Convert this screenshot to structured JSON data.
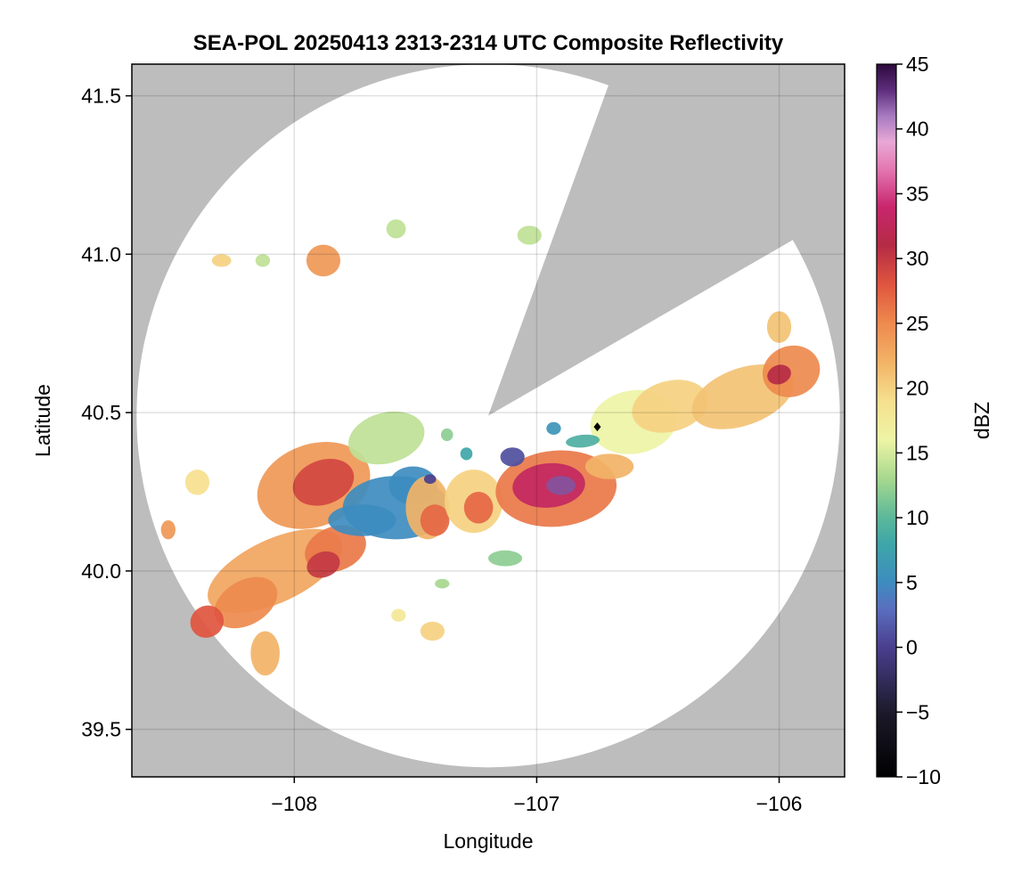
{
  "chart_data": {
    "type": "heatmap",
    "title": "SEA-POL 20250413 2313-2314 UTC Composite Reflectivity",
    "xlabel": "Longitude",
    "ylabel": "Latitude",
    "xlim": [
      -108.67,
      -105.73
    ],
    "ylim": [
      39.35,
      41.6
    ],
    "x_ticks": [
      -108,
      -107,
      -106
    ],
    "x_tick_labels": [
      "−108",
      "−107",
      "−106"
    ],
    "y_ticks": [
      39.5,
      40.0,
      40.5,
      41.0,
      41.5
    ],
    "y_tick_labels": [
      "39.5",
      "40.0",
      "40.5",
      "41.0",
      "41.5"
    ],
    "grid": true,
    "background_color": "#bdbdbd",
    "coverage_color": "#ffffff",
    "radar": {
      "center_lon": -107.2,
      "center_lat": 40.49,
      "range_deg_lat": 1.11,
      "blocked_sector_az_deg": [
        20,
        60
      ]
    },
    "station_marker": {
      "lon": -106.75,
      "lat": 40.455,
      "color": "#000000"
    },
    "colorbar": {
      "label": "dBZ",
      "min": -10,
      "max": 45,
      "ticks": [
        -10,
        -5,
        0,
        5,
        10,
        15,
        20,
        25,
        30,
        35,
        40,
        45
      ],
      "tick_labels": [
        "−10",
        "−5",
        "0",
        "5",
        "10",
        "15",
        "20",
        "25",
        "30",
        "35",
        "40",
        "45"
      ],
      "colormap_stops": [
        {
          "v": -10,
          "c": "#000000"
        },
        {
          "v": -5,
          "c": "#1c1a2a"
        },
        {
          "v": 0,
          "c": "#4a3f8e"
        },
        {
          "v": 3,
          "c": "#5a6fbf"
        },
        {
          "v": 5,
          "c": "#3d8cbf"
        },
        {
          "v": 8,
          "c": "#3ea6a8"
        },
        {
          "v": 10,
          "c": "#5cb89a"
        },
        {
          "v": 13,
          "c": "#a6d88e"
        },
        {
          "v": 16,
          "c": "#eef4a6"
        },
        {
          "v": 19,
          "c": "#f6e08e"
        },
        {
          "v": 22,
          "c": "#f2b367"
        },
        {
          "v": 25,
          "c": "#ee8a4e"
        },
        {
          "v": 28,
          "c": "#e0553f"
        },
        {
          "v": 31,
          "c": "#b52b45"
        },
        {
          "v": 34,
          "c": "#c9266e"
        },
        {
          "v": 37,
          "c": "#e47ab4"
        },
        {
          "v": 39,
          "c": "#e8a8d6"
        },
        {
          "v": 41,
          "c": "#a77ac0"
        },
        {
          "v": 43,
          "c": "#5e2d7c"
        },
        {
          "v": 45,
          "c": "#2d0a3c"
        }
      ]
    },
    "echo_regions": [
      {
        "lon": -107.92,
        "lat": 40.27,
        "rlon": 0.24,
        "rlat": 0.13,
        "rot": -20,
        "dbz": 24
      },
      {
        "lon": -107.88,
        "lat": 40.28,
        "rlon": 0.13,
        "rlat": 0.07,
        "rot": -20,
        "dbz": 29
      },
      {
        "lon": -107.62,
        "lat": 40.42,
        "rlon": 0.16,
        "rlat": 0.08,
        "rot": -15,
        "dbz": 14
      },
      {
        "lon": -108.08,
        "lat": 40.0,
        "rlon": 0.3,
        "rlat": 0.1,
        "rot": -25,
        "dbz": 23
      },
      {
        "lon": -108.2,
        "lat": 39.9,
        "rlon": 0.14,
        "rlat": 0.07,
        "rot": -30,
        "dbz": 25
      },
      {
        "lon": -108.36,
        "lat": 39.84,
        "rlon": 0.07,
        "rlat": 0.05,
        "rot": -30,
        "dbz": 28
      },
      {
        "lon": -108.12,
        "lat": 39.74,
        "rlon": 0.06,
        "rlat": 0.07,
        "rot": 0,
        "dbz": 22
      },
      {
        "lon": -107.83,
        "lat": 40.07,
        "rlon": 0.13,
        "rlat": 0.07,
        "rot": -20,
        "dbz": 26
      },
      {
        "lon": -107.88,
        "lat": 40.02,
        "rlon": 0.07,
        "rlat": 0.04,
        "rot": -20,
        "dbz": 30
      },
      {
        "lon": -107.58,
        "lat": 40.2,
        "rlon": 0.22,
        "rlat": 0.1,
        "rot": 0,
        "dbz": 5
      },
      {
        "lon": -107.72,
        "lat": 40.16,
        "rlon": 0.14,
        "rlat": 0.05,
        "rot": 0,
        "dbz": 5
      },
      {
        "lon": -107.51,
        "lat": 40.27,
        "rlon": 0.1,
        "rlat": 0.06,
        "rot": 0,
        "dbz": 5
      },
      {
        "lon": -107.45,
        "lat": 40.2,
        "rlon": 0.09,
        "rlat": 0.1,
        "rot": 0,
        "dbz": 22
      },
      {
        "lon": -107.42,
        "lat": 40.16,
        "rlon": 0.06,
        "rlat": 0.05,
        "rot": 0,
        "dbz": 27
      },
      {
        "lon": -107.44,
        "lat": 40.29,
        "rlon": 0.025,
        "rlat": 0.015,
        "rot": 0,
        "dbz": 0
      },
      {
        "lon": -107.26,
        "lat": 40.22,
        "rlon": 0.12,
        "rlat": 0.1,
        "rot": 0,
        "dbz": 20
      },
      {
        "lon": -107.24,
        "lat": 40.2,
        "rlon": 0.06,
        "rlat": 0.05,
        "rot": 0,
        "dbz": 27
      },
      {
        "lon": -106.92,
        "lat": 40.26,
        "rlon": 0.25,
        "rlat": 0.12,
        "rot": -5,
        "dbz": 26
      },
      {
        "lon": -106.95,
        "lat": 40.27,
        "rlon": 0.15,
        "rlat": 0.07,
        "rot": -5,
        "dbz": 33
      },
      {
        "lon": -106.9,
        "lat": 40.27,
        "rlon": 0.06,
        "rlat": 0.03,
        "rot": 0,
        "dbz": 42
      },
      {
        "lon": -106.7,
        "lat": 40.33,
        "rlon": 0.1,
        "rlat": 0.04,
        "rot": 0,
        "dbz": 22
      },
      {
        "lon": -107.1,
        "lat": 40.36,
        "rlon": 0.05,
        "rlat": 0.03,
        "rot": 0,
        "dbz": 1
      },
      {
        "lon": -107.29,
        "lat": 40.37,
        "rlon": 0.025,
        "rlat": 0.02,
        "rot": 0,
        "dbz": 8
      },
      {
        "lon": -106.6,
        "lat": 40.47,
        "rlon": 0.18,
        "rlat": 0.1,
        "rot": -10,
        "dbz": 16
      },
      {
        "lon": -106.45,
        "lat": 40.52,
        "rlon": 0.16,
        "rlat": 0.08,
        "rot": -15,
        "dbz": 20
      },
      {
        "lon": -106.15,
        "lat": 40.55,
        "rlon": 0.22,
        "rlat": 0.09,
        "rot": -20,
        "dbz": 21
      },
      {
        "lon": -105.95,
        "lat": 40.63,
        "rlon": 0.12,
        "rlat": 0.08,
        "rot": -20,
        "dbz": 25
      },
      {
        "lon": -106.0,
        "lat": 40.62,
        "rlon": 0.05,
        "rlat": 0.03,
        "rot": -20,
        "dbz": 31
      },
      {
        "lon": -106.0,
        "lat": 40.77,
        "rlon": 0.05,
        "rlat": 0.05,
        "rot": 0,
        "dbz": 21
      },
      {
        "lon": -106.81,
        "lat": 40.41,
        "rlon": 0.07,
        "rlat": 0.02,
        "rot": -5,
        "dbz": 9
      },
      {
        "lon": -107.88,
        "lat": 40.98,
        "rlon": 0.07,
        "rlat": 0.05,
        "rot": 0,
        "dbz": 24
      },
      {
        "lon": -107.58,
        "lat": 41.08,
        "rlon": 0.04,
        "rlat": 0.03,
        "rot": 0,
        "dbz": 14
      },
      {
        "lon": -107.03,
        "lat": 41.06,
        "rlon": 0.05,
        "rlat": 0.03,
        "rot": 0,
        "dbz": 14
      },
      {
        "lon": -108.3,
        "lat": 40.98,
        "rlon": 0.04,
        "rlat": 0.02,
        "rot": 0,
        "dbz": 20
      },
      {
        "lon": -108.13,
        "lat": 40.98,
        "rlon": 0.03,
        "rlat": 0.02,
        "rot": 0,
        "dbz": 14
      },
      {
        "lon": -108.4,
        "lat": 40.28,
        "rlon": 0.05,
        "rlat": 0.04,
        "rot": 0,
        "dbz": 19
      },
      {
        "lon": -108.52,
        "lat": 40.13,
        "rlon": 0.03,
        "rlat": 0.03,
        "rot": 0,
        "dbz": 24
      },
      {
        "lon": -107.13,
        "lat": 40.04,
        "rlon": 0.07,
        "rlat": 0.025,
        "rot": 0,
        "dbz": 12
      },
      {
        "lon": -107.43,
        "lat": 39.81,
        "rlon": 0.05,
        "rlat": 0.03,
        "rot": 0,
        "dbz": 20
      },
      {
        "lon": -107.57,
        "lat": 39.86,
        "rlon": 0.03,
        "rlat": 0.02,
        "rot": 0,
        "dbz": 18
      },
      {
        "lon": -107.39,
        "lat": 39.96,
        "rlon": 0.03,
        "rlat": 0.015,
        "rot": 0,
        "dbz": 13
      },
      {
        "lon": -107.37,
        "lat": 40.43,
        "rlon": 0.025,
        "rlat": 0.02,
        "rot": 0,
        "dbz": 12
      },
      {
        "lon": -106.93,
        "lat": 40.45,
        "rlon": 0.03,
        "rlat": 0.02,
        "rot": 0,
        "dbz": 6
      }
    ]
  }
}
